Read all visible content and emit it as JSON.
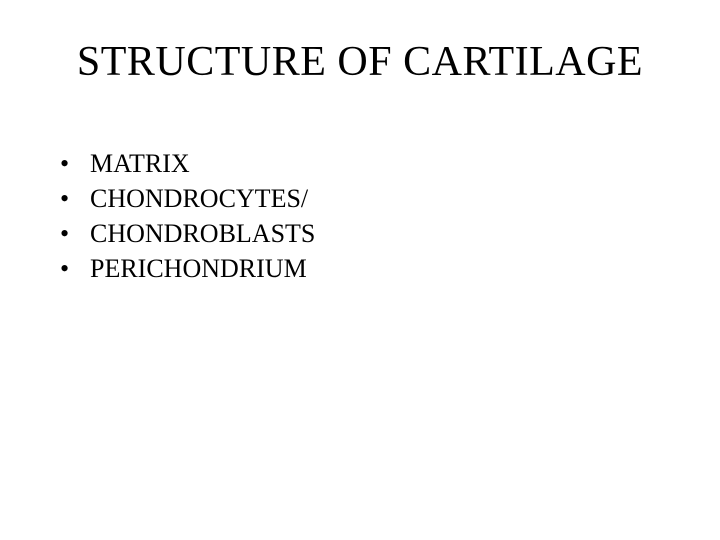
{
  "slide": {
    "title": "STRUCTURE OF CARTILAGE",
    "title_fontsize": 42,
    "background_color": "#ffffff",
    "text_color": "#000000",
    "font_family": "Times New Roman",
    "bullets": [
      {
        "marker": "•",
        "text": "MATRIX"
      },
      {
        "marker": "•",
        "text": "CHONDROCYTES/"
      },
      {
        "marker": "•",
        "text": "CHONDROBLASTS"
      },
      {
        "marker": "•",
        "text": "PERICHONDRIUM"
      }
    ],
    "bullet_fontsize": 26
  }
}
